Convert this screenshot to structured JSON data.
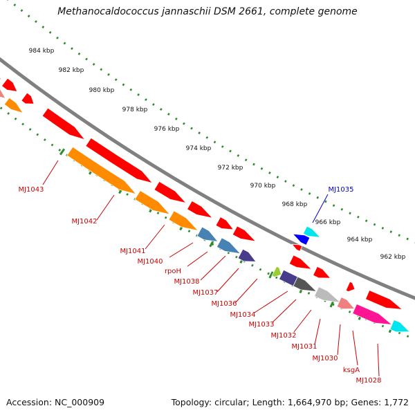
{
  "title": "Methanocaldococcus jannaschii DSM 2661, complete genome",
  "footer": {
    "accession": "Accession: NC_000909",
    "topology": "Topology: circular; Length: 1,664,970 bp; Genes: 1,772"
  },
  "scale_labels": [
    "984 kbp",
    "982 kbp",
    "980 kbp",
    "978 kbp",
    "976 kbp",
    "974 kbp",
    "972 kbp",
    "970 kbp",
    "968 kbp",
    "966 kbp",
    "964 kbp",
    "962 kbp"
  ],
  "gene_labels": [
    "MJ1043",
    "MJ1042",
    "MJ1041",
    "MJ1040",
    "rpoH",
    "MJ1038",
    "MJ1037",
    "MJ1036",
    "MJ1034",
    "MJ1033",
    "MJ1032",
    "MJ1031",
    "MJ1030",
    "ksgA",
    "MJ1028",
    "MJ1035"
  ],
  "colors": {
    "backbone": "#808080",
    "tick": "#2e8b2e",
    "forward_gene": "#ff0000",
    "label_default": "#cc0000",
    "label_highlight": "#0000cc",
    "orange": "#ff8c00",
    "steelblue": "#4682b4",
    "darkslate": "#483d8b",
    "cyan": "#00e5ee",
    "blue": "#0000ff",
    "yellowgreen": "#9acd32",
    "dimgray": "#555555",
    "silver": "#bbbbbb",
    "lightcoral": "#f08080",
    "deeppink": "#ff1493"
  }
}
